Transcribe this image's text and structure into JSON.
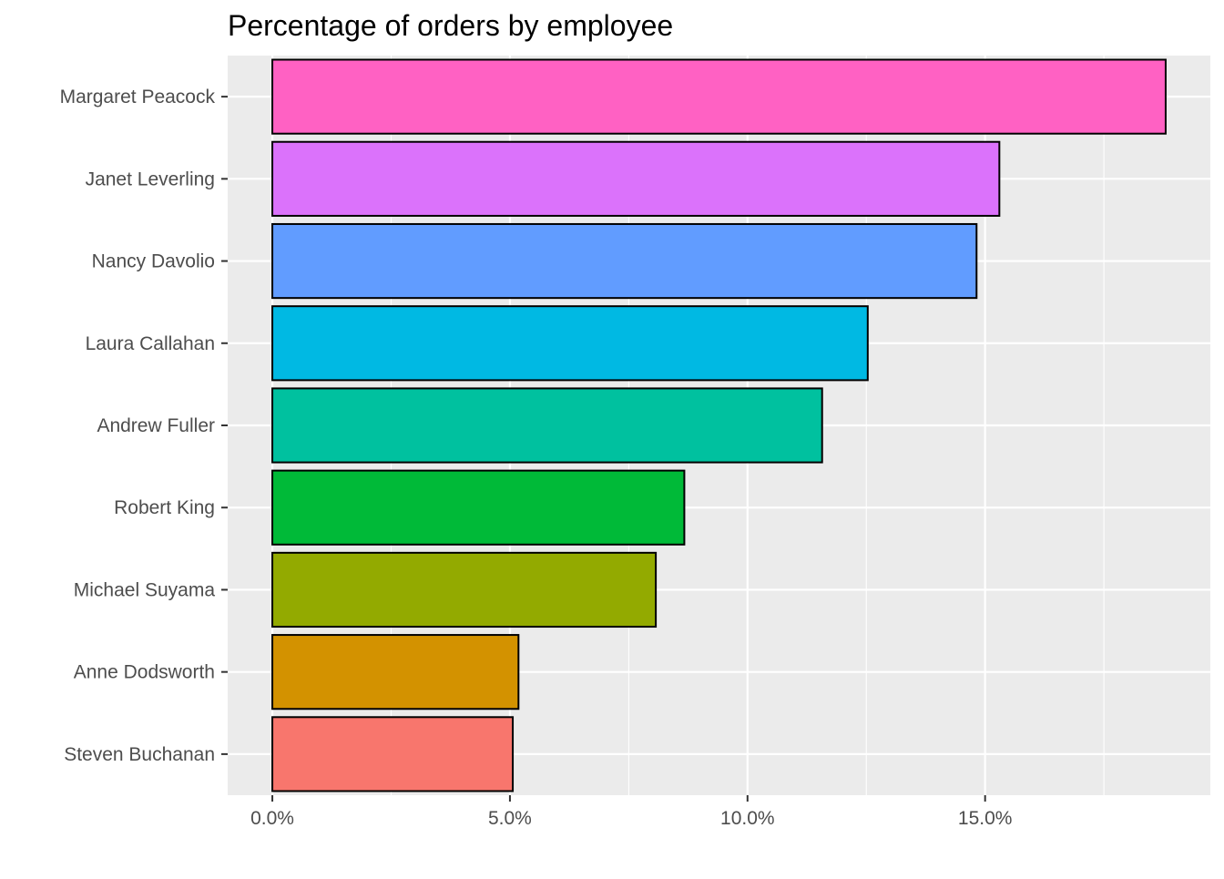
{
  "chart_data": {
    "type": "bar",
    "orientation": "horizontal",
    "title": "Percentage of orders by employee",
    "xlabel": "",
    "ylabel": "",
    "categories": [
      "Steven Buchanan",
      "Anne Dodsworth",
      "Michael Suyama",
      "Robert King",
      "Andrew Fuller",
      "Laura Callahan",
      "Nancy Davolio",
      "Janet Leverling",
      "Margaret Peacock"
    ],
    "values": [
      5.06,
      5.18,
      8.07,
      8.67,
      11.57,
      12.53,
      14.82,
      15.3,
      18.8
    ],
    "colors": [
      "#F8766D",
      "#D39200",
      "#93AA00",
      "#00BA38",
      "#00C19F",
      "#00B9E3",
      "#619CFF",
      "#DB72FB",
      "#FF61C3"
    ],
    "xlim": [
      -0.94,
      19.74
    ],
    "x_ticks": [
      0,
      5,
      10,
      15
    ],
    "x_tick_labels": [
      "0.0%",
      "5.0%",
      "10.0%",
      "15.0%"
    ],
    "x_minor_ticks": [
      2.5,
      7.5,
      12.5,
      17.5
    ],
    "grid": true,
    "legend": "none",
    "panel_background": "#EBEBEB",
    "grid_color": "#FFFFFF",
    "bar_outline": "#000000",
    "axis_text_color": "#4D4D4D"
  }
}
